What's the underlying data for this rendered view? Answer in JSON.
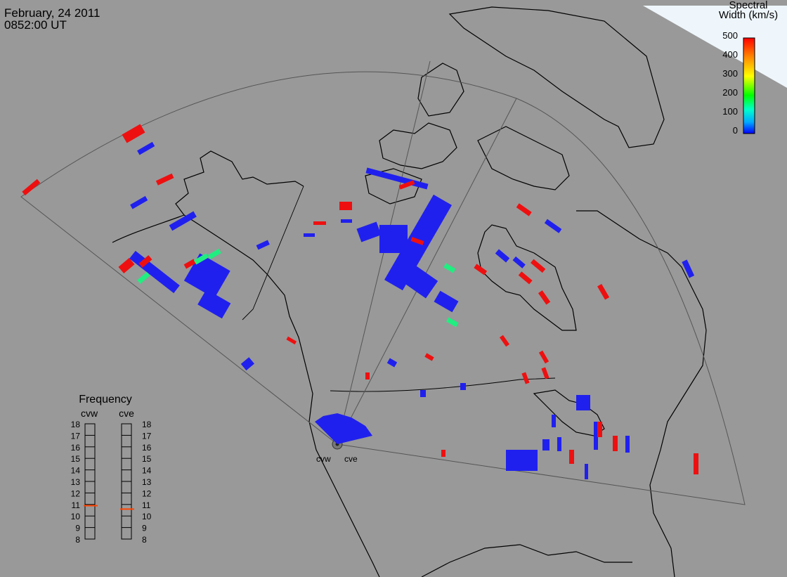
{
  "header": {
    "date": "February, 24 2011",
    "time": "0852:00 UT"
  },
  "colorbar": {
    "title_line1": "Spectral",
    "title_line2": "Width (km/s)",
    "ticks": [
      "500",
      "400",
      "300",
      "200",
      "100",
      "0"
    ],
    "range": [
      0,
      500
    ],
    "colors": [
      "#0000ff",
      "#00aaff",
      "#00ffcc",
      "#00ff00",
      "#ffff00",
      "#ff8800",
      "#ff0000"
    ]
  },
  "frequency_panel": {
    "title": "Frequency",
    "radars": [
      {
        "name": "cvw",
        "frequency_mhz": 10.9
      },
      {
        "name": "cve",
        "frequency_mhz": 10.6
      }
    ],
    "ticks": [
      "18",
      "17",
      "16",
      "15",
      "14",
      "13",
      "12",
      "11",
      "10",
      "9",
      "8"
    ],
    "range": [
      8,
      18
    ],
    "indicator_color": "#ff4400"
  },
  "site_labels": [
    "cvw",
    "cve"
  ],
  "colors": {
    "background": "#999999",
    "ocean_ice": "#eef6fb",
    "coastline": "#000000",
    "fov_outline": "#555555",
    "scatter_low": "#2020ee",
    "scatter_high": "#ee1010",
    "scatter_mid": "#20ee80"
  }
}
